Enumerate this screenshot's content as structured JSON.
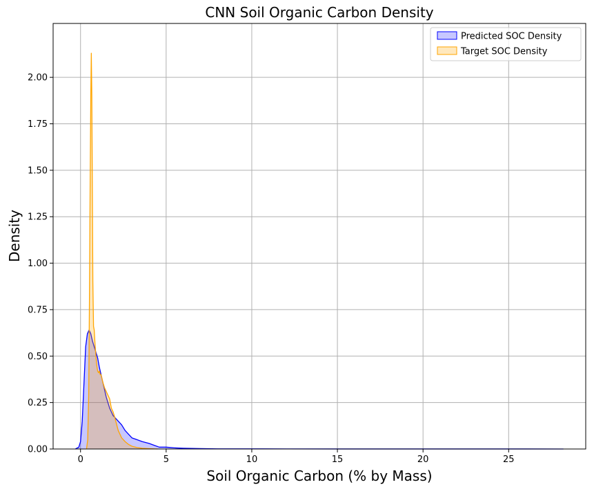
{
  "chart_data": {
    "type": "area",
    "title": "CNN Soil Organic Carbon Density",
    "xlabel": "Soil Organic Carbon (% by Mass)",
    "ylabel": "Density",
    "xlim": [
      -1.6,
      29.5
    ],
    "ylim": [
      0,
      2.29
    ],
    "xticks": [
      0,
      5,
      10,
      15,
      20,
      25
    ],
    "yticks": [
      0.0,
      0.25,
      0.5,
      0.75,
      1.0,
      1.25,
      1.5,
      1.75,
      2.0
    ],
    "ytick_labels": [
      "0.00",
      "0.25",
      "0.50",
      "0.75",
      "1.00",
      "1.25",
      "1.50",
      "1.75",
      "2.00"
    ],
    "grid": true,
    "legend_position": "top-right",
    "series": [
      {
        "name": "Predicted SOC Density",
        "color": "#0000ff",
        "fill": "#0000ff",
        "fill_opacity": 0.22,
        "x": [
          -0.3,
          -0.1,
          0.0,
          0.1,
          0.2,
          0.3,
          0.4,
          0.5,
          0.6,
          0.7,
          0.8,
          0.9,
          1.0,
          1.1,
          1.2,
          1.3,
          1.4,
          1.5,
          1.6,
          1.7,
          1.8,
          1.9,
          2.0,
          2.2,
          2.4,
          2.6,
          2.8,
          3.0,
          3.3,
          3.6,
          4.0,
          4.3,
          4.6,
          5.0,
          5.5,
          6.0,
          7.0,
          8.0,
          10.0,
          12.0,
          15.0,
          20.0,
          25.0,
          28.2
        ],
        "y": [
          0.0,
          0.01,
          0.04,
          0.15,
          0.35,
          0.55,
          0.62,
          0.64,
          0.62,
          0.58,
          0.55,
          0.52,
          0.49,
          0.44,
          0.4,
          0.36,
          0.32,
          0.28,
          0.25,
          0.22,
          0.2,
          0.18,
          0.17,
          0.15,
          0.13,
          0.1,
          0.08,
          0.06,
          0.05,
          0.04,
          0.03,
          0.02,
          0.01,
          0.01,
          0.006,
          0.004,
          0.002,
          0.001,
          0.001,
          0.0005,
          0.0003,
          0.0002,
          0.0002,
          0.0001
        ]
      },
      {
        "name": "Target SOC Density",
        "color": "#ffa500",
        "fill": "#ffa500",
        "fill_opacity": 0.26,
        "x": [
          0.35,
          0.42,
          0.48,
          0.52,
          0.56,
          0.6,
          0.63,
          0.66,
          0.69,
          0.72,
          0.76,
          0.8,
          0.85,
          0.9,
          0.95,
          1.0,
          1.05,
          1.1,
          1.15,
          1.2,
          1.3,
          1.4,
          1.5,
          1.6,
          1.7,
          1.8,
          1.9,
          2.0,
          2.2,
          2.4,
          2.6,
          2.8,
          3.0,
          3.3,
          3.6,
          4.0,
          4.5
        ],
        "y": [
          0.0,
          0.05,
          0.3,
          0.8,
          1.4,
          1.9,
          2.13,
          1.9,
          1.4,
          0.9,
          0.66,
          0.64,
          0.56,
          0.5,
          0.45,
          0.42,
          0.41,
          0.42,
          0.4,
          0.4,
          0.36,
          0.33,
          0.31,
          0.29,
          0.27,
          0.22,
          0.2,
          0.17,
          0.1,
          0.06,
          0.04,
          0.025,
          0.015,
          0.008,
          0.004,
          0.002,
          0.0
        ]
      }
    ]
  }
}
